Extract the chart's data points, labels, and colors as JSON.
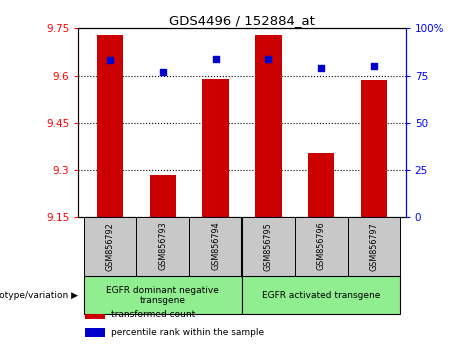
{
  "title": "GDS4496 / 152884_at",
  "samples": [
    "GSM856792",
    "GSM856793",
    "GSM856794",
    "GSM856795",
    "GSM856796",
    "GSM856797"
  ],
  "transformed_counts": [
    9.73,
    9.285,
    9.59,
    9.73,
    9.355,
    9.585
  ],
  "percentile_ranks": [
    83,
    77,
    84,
    84,
    79,
    80
  ],
  "ylim_left": [
    9.15,
    9.75
  ],
  "ylim_right": [
    0,
    100
  ],
  "left_ticks": [
    9.15,
    9.3,
    9.45,
    9.6,
    9.75
  ],
  "right_ticks": [
    0,
    25,
    50,
    75,
    100
  ],
  "right_tick_labels": [
    "0",
    "25",
    "50",
    "75",
    "100%"
  ],
  "bar_color": "#CC0000",
  "dot_color": "#0000CC",
  "groups": [
    {
      "label": "EGFR dominant negative\ntransgene",
      "color": "#90EE90"
    },
    {
      "label": "EGFR activated transgene",
      "color": "#90EE90"
    }
  ],
  "group_label": "genotype/variation",
  "legend_labels": [
    "transformed count",
    "percentile rank within the sample"
  ],
  "legend_colors": [
    "#CC0000",
    "#0000CC"
  ],
  "grid_color": "black",
  "bg_plot": "white",
  "bg_xtick": "#C8C8C8",
  "bar_width": 0.5,
  "base_value": 9.15
}
